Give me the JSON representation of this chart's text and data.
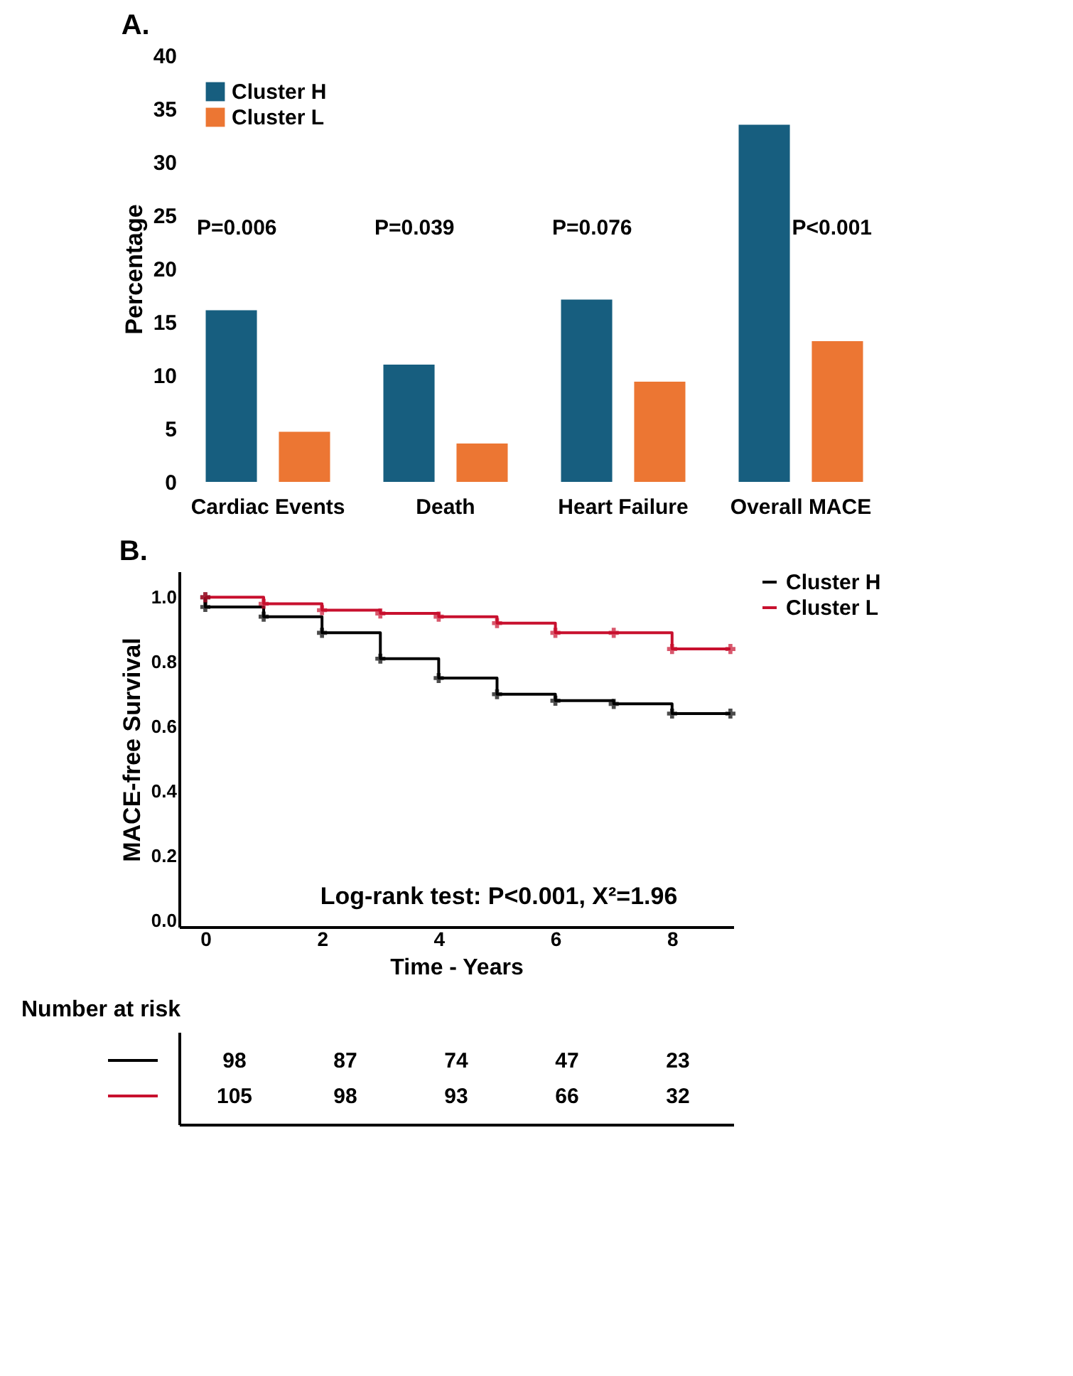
{
  "chart_data": [
    {
      "type": "bar",
      "title": "A.",
      "ylabel": "Percentage",
      "categories": [
        "Cardiac Events",
        "Death",
        "Heart Failure",
        "Overall MACE"
      ],
      "series": [
        {
          "name": "Cluster H",
          "color": "#175e7f",
          "values": [
            16.1,
            11.0,
            17.1,
            33.5
          ]
        },
        {
          "name": "Cluster L",
          "color": "#ec7633",
          "values": [
            4.7,
            3.6,
            9.4,
            13.2
          ]
        }
      ],
      "ylim": [
        0,
        40
      ],
      "yticks": [
        0,
        5,
        10,
        15,
        20,
        25,
        30,
        35,
        40
      ],
      "grid": false,
      "legend": "top left",
      "annotations": [
        "P=0.006",
        "P=0.039",
        "P=0.076",
        "P<0.001"
      ]
    },
    {
      "type": "step",
      "title": "B.",
      "xlabel": "Time - Years",
      "ylabel": "MACE-free Survival",
      "series": [
        {
          "name": "Cluster H",
          "color": "#000000",
          "x": [
            0,
            0,
            1,
            2,
            3,
            4,
            5,
            6,
            7,
            8,
            9
          ],
          "values": [
            1.0,
            0.97,
            0.94,
            0.89,
            0.81,
            0.75,
            0.7,
            0.68,
            0.67,
            0.64,
            0.64
          ]
        },
        {
          "name": "Cluster L",
          "color": "#c8102e",
          "x": [
            0,
            1,
            2,
            3,
            4,
            5,
            6,
            7,
            8,
            9
          ],
          "values": [
            1.0,
            0.98,
            0.96,
            0.95,
            0.94,
            0.92,
            0.89,
            0.89,
            0.84,
            0.84
          ]
        }
      ],
      "xlim": [
        -0.45,
        9.05
      ],
      "xticks": [
        0,
        2,
        4,
        6,
        8
      ],
      "ylim": [
        -0.02,
        1.08
      ],
      "yticks": [
        {
          "value": 0,
          "label": "0.0"
        },
        0.2,
        0.4,
        0.6,
        0.8,
        {
          "value": 1,
          "label": "1.0"
        }
      ],
      "marker": "cross",
      "line_style": "solid",
      "grid": false,
      "legend": "right",
      "annotations": [
        "Log-rank test: P<0.001, X²=1.96"
      ]
    },
    {
      "type": "other",
      "title": "Number at risk",
      "colors": [
        "#000000",
        "#c8102e"
      ],
      "annotations": [
        "98",
        "87",
        "74",
        "47",
        "23",
        "105",
        "98",
        "93",
        "66",
        "32"
      ]
    }
  ]
}
